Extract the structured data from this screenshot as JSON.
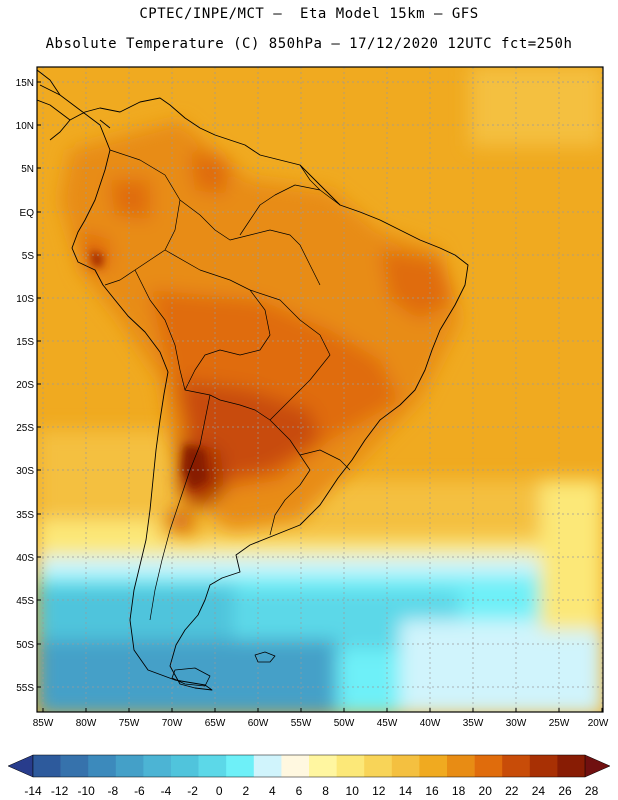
{
  "header": {
    "line1": "CPTEC/INPE/MCT –  Eta Model 15km – GFS",
    "line2": "Absolute Temperature (C) 850hPa – 17/12/2020 12UTC fct=250h"
  },
  "map": {
    "lat_labels": [
      "15N",
      "10N",
      "5N",
      "EQ",
      "5S",
      "10S",
      "15S",
      "20S",
      "25S",
      "30S",
      "35S",
      "40S",
      "45S",
      "50S",
      "55S"
    ],
    "lon_labels": [
      "85W",
      "80W",
      "75W",
      "70W",
      "65W",
      "60W",
      "55W",
      "50W",
      "45W",
      "40W",
      "35W",
      "30W",
      "25W",
      "20W"
    ]
  },
  "colorbar": {
    "labels": [
      "-14",
      "-12",
      "-10",
      "-8",
      "-6",
      "-4",
      "-2",
      "0",
      "2",
      "4",
      "6",
      "8",
      "10",
      "12",
      "14",
      "16",
      "18",
      "20",
      "22",
      "24",
      "26",
      "28"
    ],
    "colors": [
      "#283c8c",
      "#2d5a9c",
      "#3672ac",
      "#3c8abc",
      "#44a0c8",
      "#4cb4d4",
      "#50c4dc",
      "#5cd8e8",
      "#6ef0f8",
      "#d0f4fc",
      "#fff8e0",
      "#fff6a0",
      "#fce878",
      "#f8d458",
      "#f4c040",
      "#f0aa20",
      "#e88c14",
      "#e06c0c",
      "#c84c08",
      "#a83004",
      "#881c04",
      "#701010"
    ]
  }
}
